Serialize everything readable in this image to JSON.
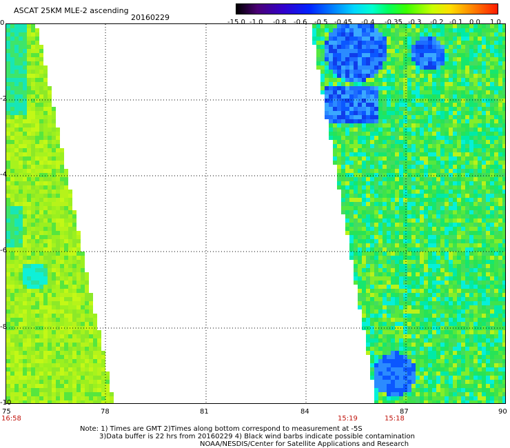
{
  "header": {
    "title": "ASCAT 25KM MLE-2 ascending",
    "date": "20160229"
  },
  "colorbar": {
    "labels": [
      "-15.0",
      "-1.0",
      "-0.8",
      "-0.6",
      "-0.5",
      "-0.45",
      "-0.4",
      "-0.35",
      "-0.3",
      "-0.2",
      "-0.1",
      "0.0",
      "1.0"
    ]
  },
  "axes": {
    "y_ticks": [
      "0",
      "-2",
      "-4",
      "-6",
      "-8",
      "-10"
    ],
    "x_ticks": [
      "75",
      "78",
      "81",
      "84",
      "87",
      "90"
    ]
  },
  "pass_times": [
    "16:58",
    "15:19",
    "15:18"
  ],
  "notes": [
    "Note: 1) Times are GMT 2)Times along bottom correspond to measurement at -5S",
    "3)Data buffer is 22 hrs from 20160229 4) Black wind barbs indicate possible contamination",
    "NOAA/NESDIS/Center for Satellite Applications and Research"
  ],
  "map": {
    "lon_range": [
      75,
      90
    ],
    "lat_range": [
      -10,
      0
    ],
    "swaths": [
      {
        "name": "west",
        "dominant": "yellow-green"
      },
      {
        "name": "east",
        "dominant": "green"
      }
    ]
  }
}
